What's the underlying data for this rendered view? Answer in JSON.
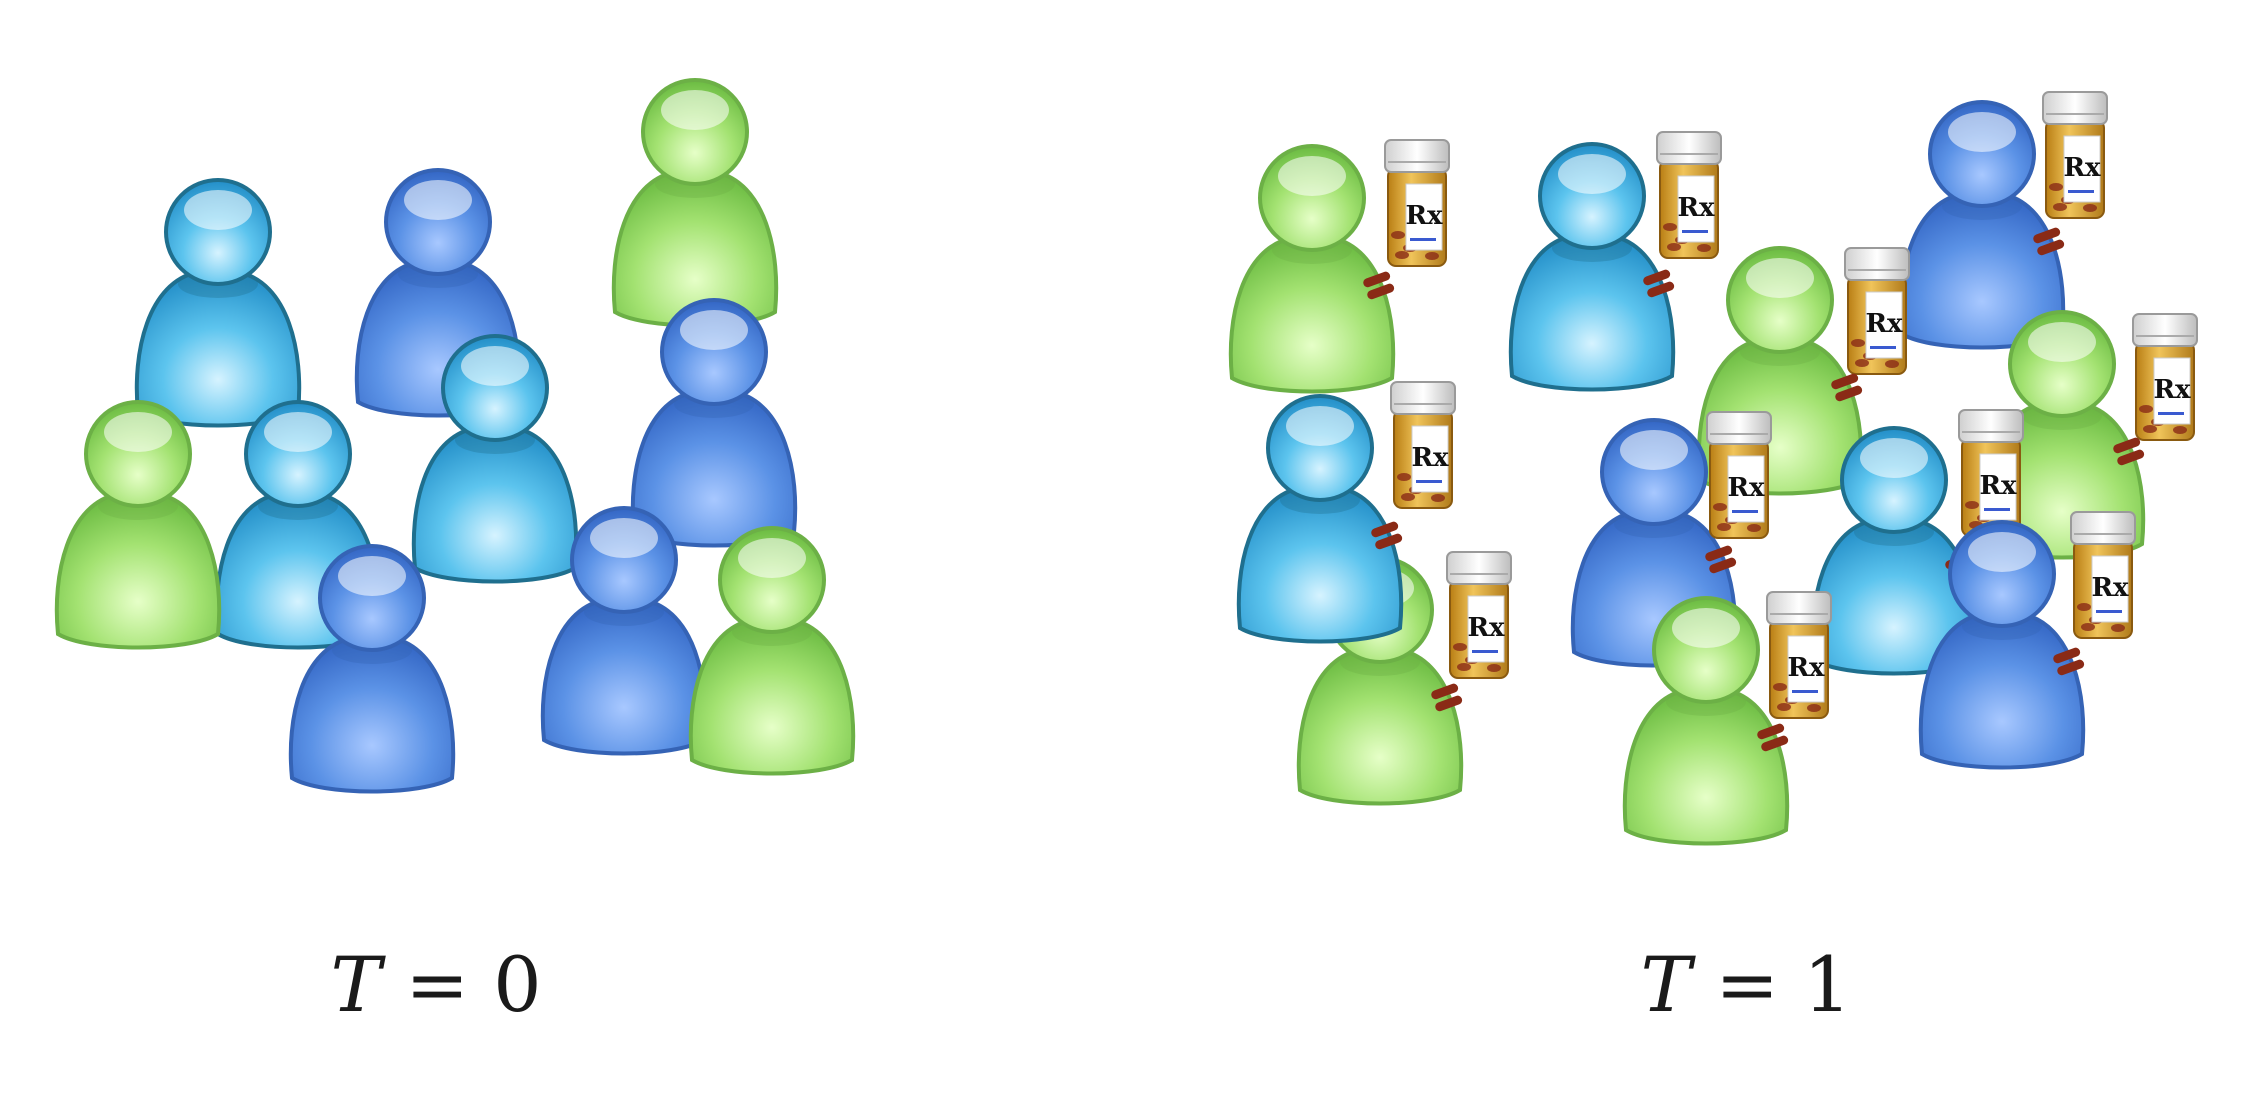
{
  "panels": [
    {
      "id": "left",
      "caption": {
        "variable": "T",
        "operator": "=",
        "value": "0"
      },
      "people": [
        {
          "color": "light-blue",
          "medication": false
        },
        {
          "color": "blue",
          "medication": false
        },
        {
          "color": "green",
          "medication": false
        },
        {
          "color": "light-blue",
          "medication": false
        },
        {
          "color": "green",
          "medication": false
        },
        {
          "color": "blue",
          "medication": false
        },
        {
          "color": "light-blue",
          "medication": false
        },
        {
          "color": "blue",
          "medication": false
        },
        {
          "color": "blue",
          "medication": false
        },
        {
          "color": "green",
          "medication": false
        }
      ]
    },
    {
      "id": "right",
      "caption": {
        "variable": "T",
        "operator": "=",
        "value": "1"
      },
      "people": [
        {
          "color": "green",
          "medication": true
        },
        {
          "color": "light-blue",
          "medication": true
        },
        {
          "color": "blue",
          "medication": true
        },
        {
          "color": "green",
          "medication": true
        },
        {
          "color": "green",
          "medication": true
        },
        {
          "color": "light-blue",
          "medication": true
        },
        {
          "color": "green",
          "medication": true
        },
        {
          "color": "blue",
          "medication": true
        },
        {
          "color": "light-blue",
          "medication": true
        },
        {
          "color": "green",
          "medication": true
        },
        {
          "color": "blue",
          "medication": true
        }
      ]
    }
  ],
  "bottle_label": "Rx",
  "colors": {
    "light-blue": "#3bb0e0",
    "blue": "#4a84dc",
    "green": "#8fd85e",
    "bottle": "#d9a534",
    "pill": "#8a2a16"
  }
}
